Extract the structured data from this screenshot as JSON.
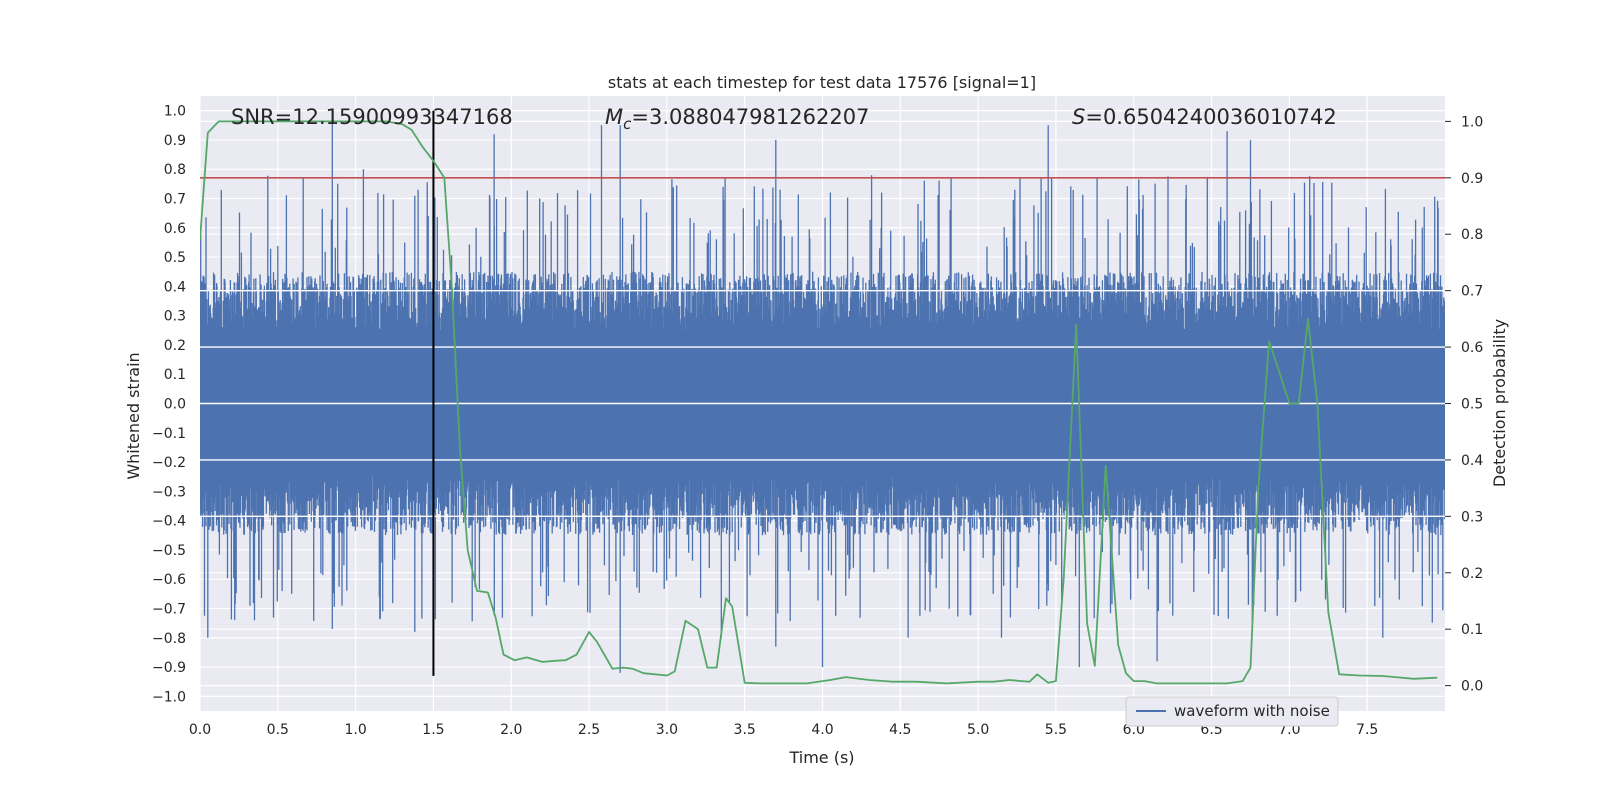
{
  "chart_data": {
    "type": "line",
    "title": "stats at each timestep for test data 17576 [signal=1]",
    "xlabel": "Time (s)",
    "ylabel": "Whitened strain",
    "ylabel_right": "Detection probability",
    "xlim": [
      0,
      8.0
    ],
    "ylim_left": [
      -1.05,
      1.05
    ],
    "ylim_right": [
      -0.045,
      1.045
    ],
    "xticks": [
      "0.0",
      "0.5",
      "1.0",
      "1.5",
      "2.0",
      "2.5",
      "3.0",
      "3.5",
      "4.0",
      "4.5",
      "5.0",
      "5.5",
      "6.0",
      "6.5",
      "7.0",
      "7.5"
    ],
    "yticks_left": [
      "1.0",
      "0.9",
      "0.8",
      "0.7",
      "0.6",
      "0.5",
      "0.4",
      "0.3",
      "0.2",
      "0.1",
      "0.0",
      "−0.1",
      "−0.2",
      "−0.3",
      "−0.4",
      "−0.5",
      "−0.6",
      "−0.7",
      "−0.8",
      "−0.9",
      "−1.0"
    ],
    "yticks_right": [
      "1.0",
      "0.9",
      "0.8",
      "0.7",
      "0.6",
      "0.5",
      "0.4",
      "0.3",
      "0.2",
      "0.1",
      "0.0"
    ],
    "annotations": {
      "snr": "SNR=12.15900993347168",
      "mc_symbol": "M",
      "mc_sub": "c",
      "mc_value": "=3.088047981262207",
      "s_symbol": "S",
      "s_value": "=0.6504240036010742"
    },
    "legend": {
      "label": "waveform with noise",
      "placement": "lower-right"
    },
    "threshold_probability": 0.9,
    "marker_time": 1.5,
    "waveform_envelope": {
      "description_free": true,
      "typical_pos": 0.45,
      "typical_neg": -0.45,
      "peaks_pos": [
        [
          0.85,
          1.0
        ],
        [
          1.05,
          0.8
        ],
        [
          1.89,
          0.92
        ],
        [
          2.58,
          0.95
        ],
        [
          2.7,
          0.95
        ],
        [
          3.7,
          0.9
        ],
        [
          5.45,
          0.95
        ],
        [
          6.6,
          0.93
        ],
        [
          6.75,
          0.9
        ]
      ],
      "peaks_neg": [
        [
          0.05,
          -0.8
        ],
        [
          0.35,
          -0.74
        ],
        [
          0.85,
          -0.77
        ],
        [
          1.38,
          -0.78
        ],
        [
          2.7,
          -0.92
        ],
        [
          3.35,
          -0.8
        ],
        [
          3.7,
          -0.83
        ],
        [
          4.0,
          -0.9
        ],
        [
          4.55,
          -0.8
        ],
        [
          5.15,
          -0.8
        ],
        [
          5.65,
          -0.9
        ],
        [
          6.15,
          -0.88
        ],
        [
          7.6,
          -0.8
        ]
      ]
    },
    "series": [
      {
        "name": "detection probability",
        "color": "#55a868",
        "x": [
          0.0,
          0.05,
          0.12,
          0.3,
          0.6,
          0.9,
          1.2,
          1.3,
          1.36,
          1.43,
          1.5,
          1.57,
          1.62,
          1.67,
          1.72,
          1.78,
          1.85,
          1.9,
          1.95,
          2.02,
          2.1,
          2.2,
          2.28,
          2.35,
          2.42,
          2.5,
          2.55,
          2.65,
          2.72,
          2.78,
          2.85,
          3.0,
          3.05,
          3.12,
          3.2,
          3.26,
          3.32,
          3.38,
          3.42,
          3.5,
          3.6,
          3.75,
          3.9,
          4.05,
          4.15,
          4.3,
          4.45,
          4.6,
          4.8,
          5.0,
          5.1,
          5.2,
          5.28,
          5.33,
          5.38,
          5.45,
          5.5,
          5.55,
          5.63,
          5.7,
          5.75,
          5.82,
          5.9,
          5.95,
          6.0,
          6.07,
          6.15,
          6.3,
          6.45,
          6.6,
          6.7,
          6.75,
          6.8,
          6.87,
          6.93,
          7.0,
          7.06,
          7.12,
          7.18,
          7.25,
          7.32,
          7.45,
          7.6,
          7.8,
          7.95
        ],
        "y": [
          0.79,
          0.98,
          1.0,
          1.0,
          1.0,
          1.0,
          1.0,
          0.995,
          0.985,
          0.955,
          0.93,
          0.9,
          0.7,
          0.42,
          0.24,
          0.168,
          0.165,
          0.12,
          0.055,
          0.045,
          0.05,
          0.042,
          0.044,
          0.045,
          0.055,
          0.095,
          0.078,
          0.03,
          0.032,
          0.03,
          0.022,
          0.018,
          0.025,
          0.115,
          0.1,
          0.032,
          0.032,
          0.155,
          0.14,
          0.005,
          0.004,
          0.004,
          0.004,
          0.01,
          0.015,
          0.01,
          0.007,
          0.007,
          0.004,
          0.007,
          0.007,
          0.01,
          0.008,
          0.007,
          0.02,
          0.005,
          0.008,
          0.19,
          0.64,
          0.11,
          0.035,
          0.39,
          0.072,
          0.022,
          0.008,
          0.008,
          0.004,
          0.004,
          0.004,
          0.004,
          0.008,
          0.032,
          0.35,
          0.61,
          0.56,
          0.5,
          0.5,
          0.65,
          0.5,
          0.13,
          0.02,
          0.018,
          0.017,
          0.012,
          0.014
        ]
      }
    ],
    "colors": {
      "waveform": "#4c72b0",
      "probability": "#55a868",
      "threshold": "#c44e52",
      "marker": "#000000",
      "background": "#eaeaf2",
      "grid": "#ffffff"
    }
  }
}
